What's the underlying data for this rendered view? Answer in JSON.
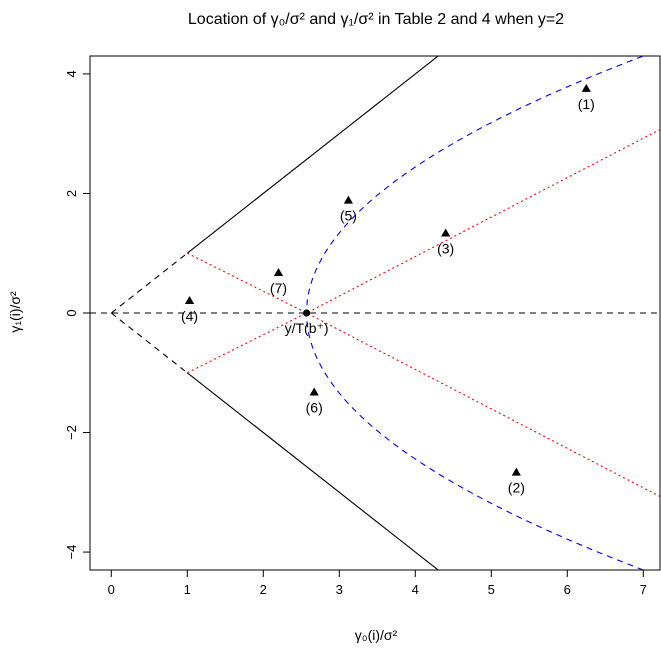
{
  "chart_data": {
    "type": "scatter",
    "title": "Location of γ₀/σ² and γ₁/σ² in Table 2 and 4 when y=2",
    "xlabel": "γ₀(i)/σ²",
    "ylabel": "γ₁(i)/σ²",
    "xlim": [
      -0.28,
      7.22
    ],
    "ylim": [
      -4.3,
      4.3
    ],
    "xticks": [
      0,
      1,
      2,
      3,
      4,
      5,
      6,
      7
    ],
    "yticks": [
      -4,
      -2,
      0,
      2,
      4
    ],
    "grid": false,
    "points": [
      {
        "label": "(1)",
        "x": 6.25,
        "y": 3.75
      },
      {
        "label": "(2)",
        "x": 5.33,
        "y": -2.67
      },
      {
        "label": "(3)",
        "x": 4.4,
        "y": 1.33
      },
      {
        "label": "(4)",
        "x": 1.03,
        "y": 0.2
      },
      {
        "label": "(5)",
        "x": 3.12,
        "y": 1.88
      },
      {
        "label": "(6)",
        "x": 2.67,
        "y": -1.33
      },
      {
        "label": "(7)",
        "x": 2.2,
        "y": 0.67
      }
    ],
    "reference_point": {
      "label": "y/T(b⁺)",
      "x": 2.57,
      "y": 0
    },
    "lines": [
      {
        "style": "solid",
        "color": "#000000",
        "points": [
          [
            1.0,
            1.0
          ],
          [
            4.33,
            4.33
          ]
        ]
      },
      {
        "style": "solid",
        "color": "#000000",
        "points": [
          [
            1.0,
            -1.0
          ],
          [
            4.33,
            -4.33
          ]
        ]
      },
      {
        "style": "dashed",
        "color": "#000000",
        "points": [
          [
            0,
            0
          ],
          [
            1.0,
            1.0
          ]
        ]
      },
      {
        "style": "dashed",
        "color": "#000000",
        "points": [
          [
            0,
            0
          ],
          [
            1.0,
            -1.0
          ]
        ]
      },
      {
        "style": "dashed",
        "color": "#000000",
        "points": [
          [
            -0.28,
            0
          ],
          [
            7.22,
            0
          ]
        ]
      },
      {
        "style": "dotted",
        "color": "#ff0000",
        "points": [
          [
            1.0,
            1.0
          ],
          [
            2.57,
            0
          ],
          [
            7.22,
            -3.07
          ]
        ]
      },
      {
        "style": "dotted",
        "color": "#ff0000",
        "points": [
          [
            1.0,
            -1.0
          ],
          [
            2.57,
            0
          ],
          [
            7.22,
            3.07
          ]
        ]
      },
      {
        "style": "dashed",
        "color": "#0000ff",
        "curve": "sideways-parabola",
        "vertex": [
          2.57,
          0
        ],
        "x_at_y_4_3": 7.0
      }
    ]
  }
}
